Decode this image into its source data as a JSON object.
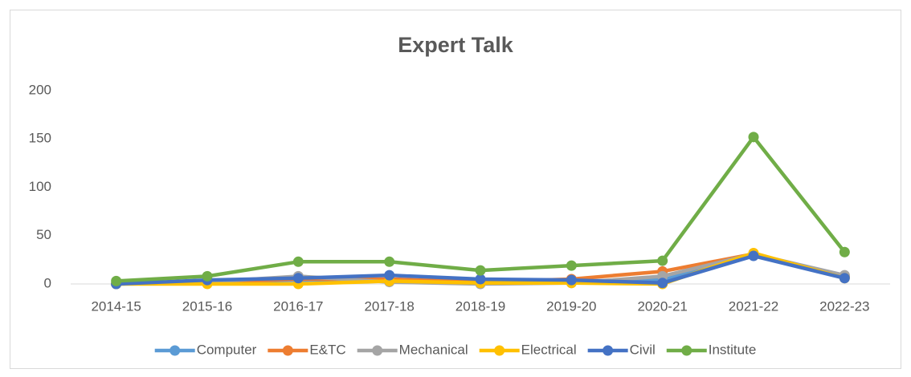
{
  "chart_data": {
    "type": "line",
    "title": "Expert Talk",
    "categories": [
      "2014-15",
      "2015-16",
      "2016-17",
      "2017-18",
      "2018-19",
      "2019-20",
      "2020-21",
      "2021-22",
      "2022-23"
    ],
    "series": [
      {
        "name": "Computer",
        "color": "#5b9bd5",
        "values": [
          0,
          2,
          4,
          5,
          2,
          3,
          4,
          30,
          7
        ]
      },
      {
        "name": "E&TC",
        "color": "#ed7d31",
        "values": [
          0,
          2,
          5,
          5,
          2,
          5,
          13,
          31,
          8
        ]
      },
      {
        "name": "Mechanical",
        "color": "#a5a5a5",
        "values": [
          0,
          2,
          8,
          2,
          0,
          1,
          8,
          31,
          9
        ]
      },
      {
        "name": "Electrical",
        "color": "#ffc000",
        "values": [
          0,
          0,
          0,
          3,
          1,
          1,
          0,
          32,
          6
        ]
      },
      {
        "name": "Civil",
        "color": "#4472c4",
        "values": [
          0,
          4,
          6,
          9,
          5,
          4,
          1,
          29,
          6
        ]
      },
      {
        "name": "Institute",
        "color": "#70ad47",
        "values": [
          3,
          8,
          23,
          23,
          14,
          19,
          24,
          152,
          33
        ]
      }
    ],
    "ylim": [
      0,
      200
    ],
    "yticks": [
      0,
      50,
      100,
      150,
      200
    ],
    "grid": false,
    "legend": "bottom"
  }
}
